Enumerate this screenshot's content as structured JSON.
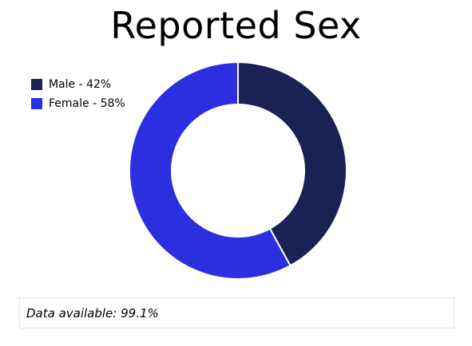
{
  "chart_data": {
    "type": "pie",
    "title": "Reported Sex",
    "categories": [
      "Male",
      "Female"
    ],
    "values": [
      42,
      58
    ],
    "legend_labels": [
      "Male - 42%",
      "Female - 58%"
    ],
    "colors": [
      "#1a2155",
      "#2b2fe0"
    ],
    "donut": true,
    "legend_position": "top-left"
  },
  "footer": {
    "text": "Data available: 99.1%"
  }
}
